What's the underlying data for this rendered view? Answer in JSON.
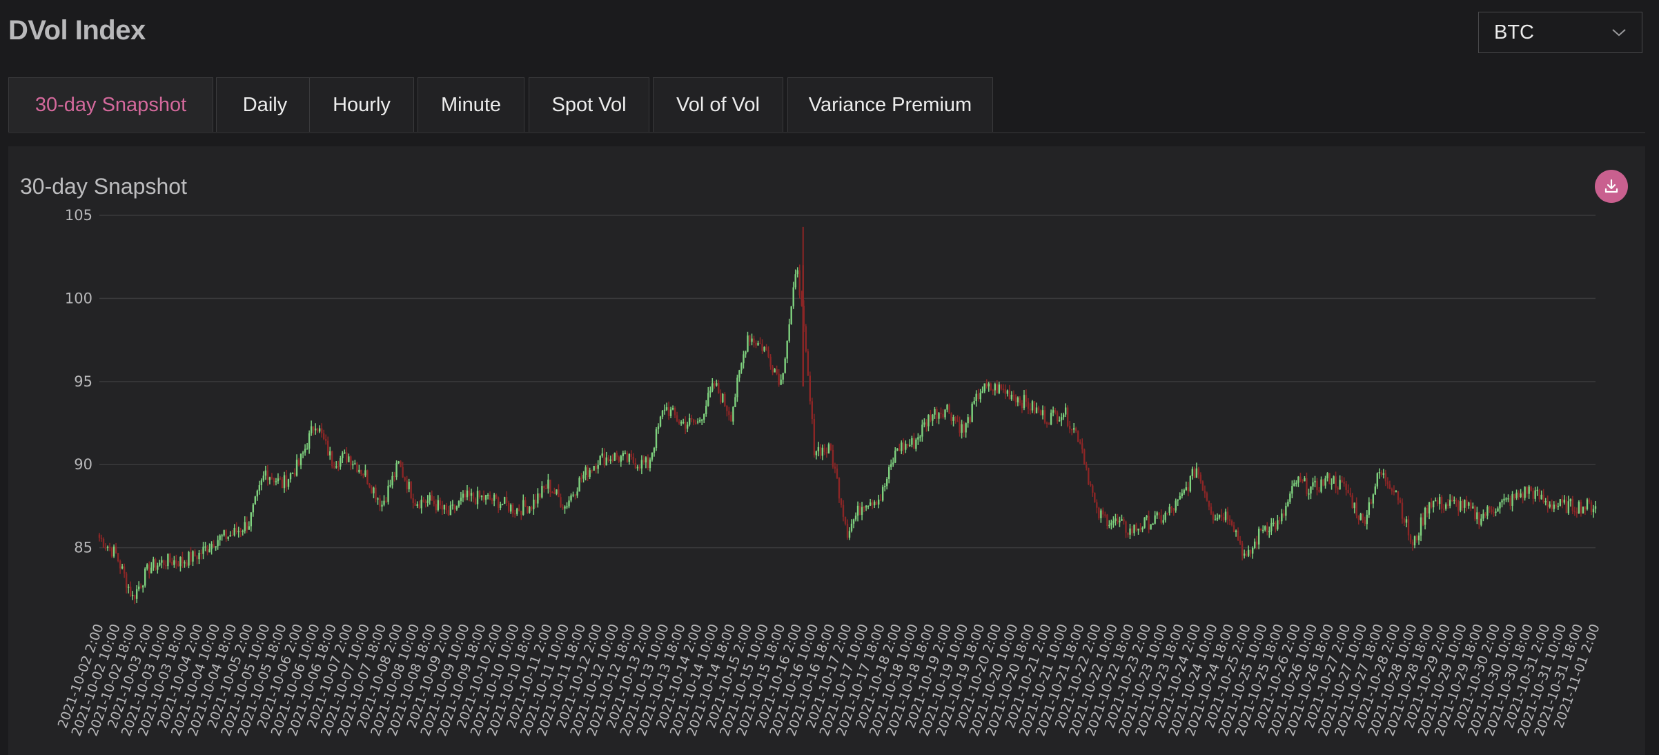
{
  "header": {
    "title": "DVol Index"
  },
  "asset_select": {
    "value": "BTC"
  },
  "tabs": [
    {
      "label": "30-day Snapshot",
      "active": true
    },
    {
      "label": "Daily",
      "active": false
    },
    {
      "label": "Hourly",
      "active": false
    },
    {
      "label": "Minute",
      "active": false
    },
    {
      "label": "Spot Vol",
      "active": false
    },
    {
      "label": "Vol of Vol",
      "active": false
    },
    {
      "label": "Variance Premium",
      "active": false
    }
  ],
  "panel": {
    "title": "30-day Snapshot"
  },
  "colors": {
    "up": "#7fd27f",
    "down": "#8c2626",
    "accent": "#d4699c",
    "grid": "#3a3a3c"
  },
  "chart_data": {
    "type": "candlestick",
    "ylim": [
      80.5,
      105
    ],
    "yticks": [
      85,
      90,
      95,
      100,
      105
    ],
    "grid": true,
    "x_labels": [
      "2021-10-02  2:00",
      "2021-10-02  10:00",
      "2021-10-02  18:00",
      "2021-10-03  2:00",
      "2021-10-03  10:00",
      "2021-10-03  18:00",
      "2021-10-04  2:00",
      "2021-10-04  10:00",
      "2021-10-04  18:00",
      "2021-10-05  2:00",
      "2021-10-05  10:00",
      "2021-10-05  18:00",
      "2021-10-06  2:00",
      "2021-10-06  10:00",
      "2021-10-06  18:00",
      "2021-10-07  2:00",
      "2021-10-07  10:00",
      "2021-10-07  18:00",
      "2021-10-08  2:00",
      "2021-10-08  10:00",
      "2021-10-08  18:00",
      "2021-10-09  2:00",
      "2021-10-09  10:00",
      "2021-10-09  18:00",
      "2021-10-10  2:00",
      "2021-10-10  10:00",
      "2021-10-10  18:00",
      "2021-10-11  2:00",
      "2021-10-11  10:00",
      "2021-10-11  18:00",
      "2021-10-12  2:00",
      "2021-10-12  10:00",
      "2021-10-12  18:00",
      "2021-10-13  2:00",
      "2021-10-13  10:00",
      "2021-10-13  18:00",
      "2021-10-14  2:00",
      "2021-10-14  10:00",
      "2021-10-14  18:00",
      "2021-10-15  2:00",
      "2021-10-15  10:00",
      "2021-10-15  18:00",
      "2021-10-16  2:00",
      "2021-10-16  10:00",
      "2021-10-16  18:00",
      "2021-10-17  2:00",
      "2021-10-17  10:00",
      "2021-10-17  18:00",
      "2021-10-18  2:00",
      "2021-10-18  10:00",
      "2021-10-18  18:00",
      "2021-10-19  2:00",
      "2021-10-19  10:00",
      "2021-10-19  18:00",
      "2021-10-20  2:00",
      "2021-10-20  10:00",
      "2021-10-20  18:00",
      "2021-10-21  2:00",
      "2021-10-21  10:00",
      "2021-10-21  18:00",
      "2021-10-22  2:00",
      "2021-10-22  10:00",
      "2021-10-22  18:00",
      "2021-10-23  2:00",
      "2021-10-23  10:00",
      "2021-10-23  18:00",
      "2021-10-24  2:00",
      "2021-10-24  10:00",
      "2021-10-24  18:00",
      "2021-10-25  2:00",
      "2021-10-25  10:00",
      "2021-10-25  18:00",
      "2021-10-26  2:00",
      "2021-10-26  10:00",
      "2021-10-26  18:00",
      "2021-10-27  2:00",
      "2021-10-27  10:00",
      "2021-10-27  18:00",
      "2021-10-28  2:00",
      "2021-10-28  10:00",
      "2021-10-28  18:00",
      "2021-10-29  2:00",
      "2021-10-29  10:00",
      "2021-10-29  18:00",
      "2021-10-30  2:00",
      "2021-10-30  10:00",
      "2021-10-30  18:00",
      "2021-10-31  2:00",
      "2021-10-31  10:00",
      "2021-10-31  18:00",
      "2021-11-01  2:00"
    ],
    "key_points": [
      [
        "2021-10-02  2:00",
        85.6
      ],
      [
        "2021-10-02  10:00",
        84.6
      ],
      [
        "2021-10-02  18:00",
        82.0
      ],
      [
        "2021-10-03  2:00",
        83.8
      ],
      [
        "2021-10-03  10:00",
        84.2
      ],
      [
        "2021-10-03  18:00",
        84.2
      ],
      [
        "2021-10-04  2:00",
        84.6
      ],
      [
        "2021-10-04  10:00",
        85.5
      ],
      [
        "2021-10-04  18:00",
        85.8
      ],
      [
        "2021-10-05  2:00",
        86.5
      ],
      [
        "2021-10-05  10:00",
        89.6
      ],
      [
        "2021-10-05  18:00",
        88.8
      ],
      [
        "2021-10-06  2:00",
        90.0
      ],
      [
        "2021-10-06  10:00",
        92.6
      ],
      [
        "2021-10-06  18:00",
        90.2
      ],
      [
        "2021-10-07  2:00",
        90.5
      ],
      [
        "2021-10-07  10:00",
        89.4
      ],
      [
        "2021-10-07  18:00",
        87.6
      ],
      [
        "2021-10-08  2:00",
        90.0
      ],
      [
        "2021-10-08  10:00",
        87.8
      ],
      [
        "2021-10-08  18:00",
        87.8
      ],
      [
        "2021-10-09  2:00",
        87.0
      ],
      [
        "2021-10-09  10:00",
        88.0
      ],
      [
        "2021-10-09  18:00",
        88.0
      ],
      [
        "2021-10-10  2:00",
        87.8
      ],
      [
        "2021-10-10  10:00",
        87.3
      ],
      [
        "2021-10-10  18:00",
        87.6
      ],
      [
        "2021-10-11  2:00",
        88.8
      ],
      [
        "2021-10-11  10:00",
        87.5
      ],
      [
        "2021-10-11  18:00",
        89.2
      ],
      [
        "2021-10-12  2:00",
        90.3
      ],
      [
        "2021-10-12  10:00",
        90.5
      ],
      [
        "2021-10-12  18:00",
        90.2
      ],
      [
        "2021-10-13  2:00",
        90.0
      ],
      [
        "2021-10-13  10:00",
        93.5
      ],
      [
        "2021-10-13  18:00",
        92.5
      ],
      [
        "2021-10-14  2:00",
        92.5
      ],
      [
        "2021-10-14  10:00",
        94.8
      ],
      [
        "2021-10-14  18:00",
        93.0
      ],
      [
        "2021-10-15  2:00",
        97.8
      ],
      [
        "2021-10-15  10:00",
        97.0
      ],
      [
        "2021-10-15  18:00",
        95.0
      ],
      [
        "2021-10-16  2:00",
        102.0
      ],
      [
        "2021-10-16  10:00",
        91.0
      ],
      [
        "2021-10-16  18:00",
        90.8
      ],
      [
        "2021-10-17  2:00",
        86.0
      ],
      [
        "2021-10-17  10:00",
        87.8
      ],
      [
        "2021-10-17  18:00",
        88.0
      ],
      [
        "2021-10-18  2:00",
        91.0
      ],
      [
        "2021-10-18  10:00",
        91.3
      ],
      [
        "2021-10-18  18:00",
        93.0
      ],
      [
        "2021-10-19  2:00",
        93.4
      ],
      [
        "2021-10-19  10:00",
        92.0
      ],
      [
        "2021-10-19  18:00",
        94.5
      ],
      [
        "2021-10-20  2:00",
        94.6
      ],
      [
        "2021-10-20  10:00",
        94.2
      ],
      [
        "2021-10-20  18:00",
        93.5
      ],
      [
        "2021-10-21  2:00",
        92.8
      ],
      [
        "2021-10-21  10:00",
        93.2
      ],
      [
        "2021-10-21  18:00",
        91.5
      ],
      [
        "2021-10-22  2:00",
        87.0
      ],
      [
        "2021-10-22  10:00",
        86.6
      ],
      [
        "2021-10-22  18:00",
        86.0
      ],
      [
        "2021-10-23  2:00",
        86.5
      ],
      [
        "2021-10-23  10:00",
        86.8
      ],
      [
        "2021-10-23  18:00",
        87.8
      ],
      [
        "2021-10-24  2:00",
        89.8
      ],
      [
        "2021-10-24  10:00",
        87.0
      ],
      [
        "2021-10-24  18:00",
        87.0
      ],
      [
        "2021-10-25  2:00",
        84.2
      ],
      [
        "2021-10-25  10:00",
        86.3
      ],
      [
        "2021-10-25  18:00",
        86.4
      ],
      [
        "2021-10-26  2:00",
        89.0
      ],
      [
        "2021-10-26  10:00",
        88.5
      ],
      [
        "2021-10-26  18:00",
        89.2
      ],
      [
        "2021-10-27  2:00",
        88.5
      ],
      [
        "2021-10-27  10:00",
        86.5
      ],
      [
        "2021-10-27  18:00",
        89.5
      ],
      [
        "2021-10-28  2:00",
        88.5
      ],
      [
        "2021-10-28  10:00",
        85.0
      ],
      [
        "2021-10-28  18:00",
        87.8
      ],
      [
        "2021-10-29  2:00",
        87.6
      ],
      [
        "2021-10-29  10:00",
        87.6
      ],
      [
        "2021-10-29  18:00",
        86.8
      ],
      [
        "2021-10-30  2:00",
        87.5
      ],
      [
        "2021-10-30  10:00",
        87.9
      ],
      [
        "2021-10-30  18:00",
        88.5
      ],
      [
        "2021-10-31  2:00",
        87.7
      ],
      [
        "2021-10-31  10:00",
        87.5
      ],
      [
        "2021-10-31  18:00",
        87.5
      ],
      [
        "2021-11-01  2:00",
        87.5
      ]
    ],
    "extreme_candles": [
      {
        "x": "2021-10-16  2:00",
        "open": 102.0,
        "high": 104.3,
        "low": 94.7,
        "close": 94.7
      }
    ]
  }
}
